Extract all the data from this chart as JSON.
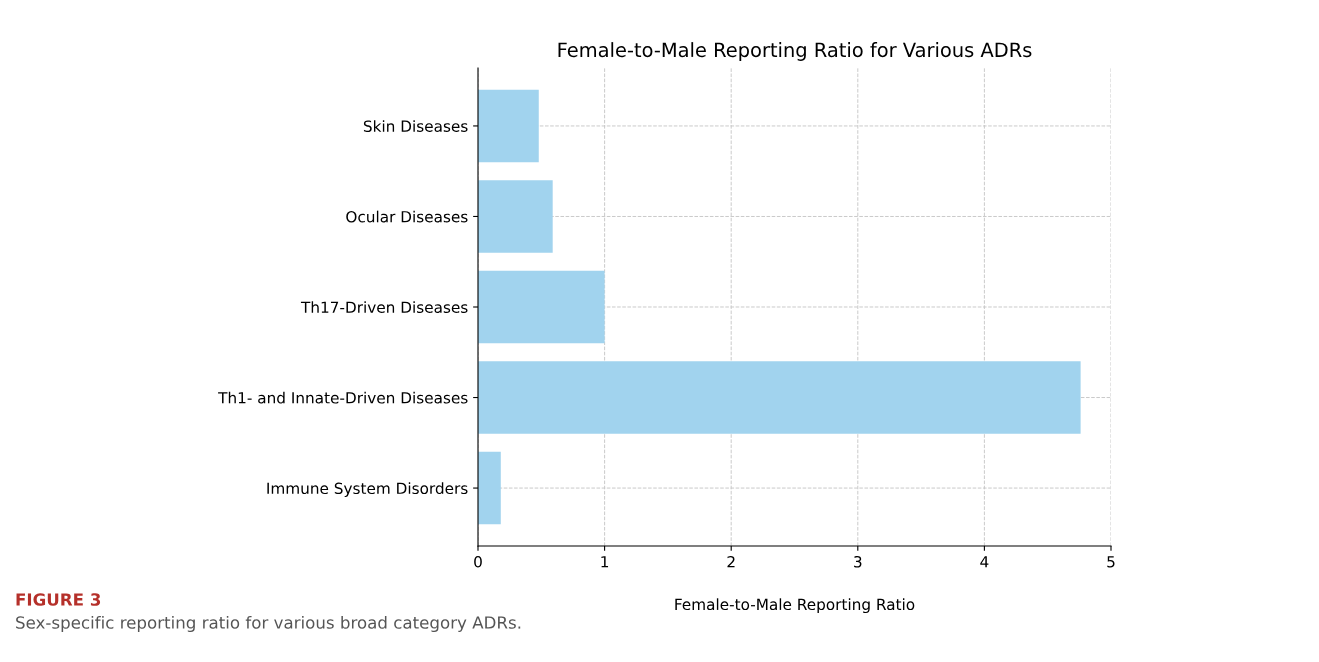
{
  "chart_data": {
    "type": "bar",
    "orientation": "horizontal",
    "title": "Female-to-Male Reporting Ratio for Various ADRs",
    "xlabel": "Female-to-Male Reporting Ratio",
    "categories": [
      "Skin Diseases",
      "Ocular Diseases",
      "Th17-Driven Diseases",
      "Th1- and Innate-Driven Diseases",
      "Immune System Disorders"
    ],
    "values": [
      0.48,
      0.59,
      1.0,
      4.76,
      0.18
    ],
    "color": "#a1d3ee",
    "xlim": [
      0,
      5
    ],
    "xticks": [
      0,
      1,
      2,
      3,
      4,
      5
    ],
    "grid": true,
    "annotations": [
      "FIGURE 3",
      "Sex-specific reporting ratio for various broad category ADRs."
    ]
  }
}
